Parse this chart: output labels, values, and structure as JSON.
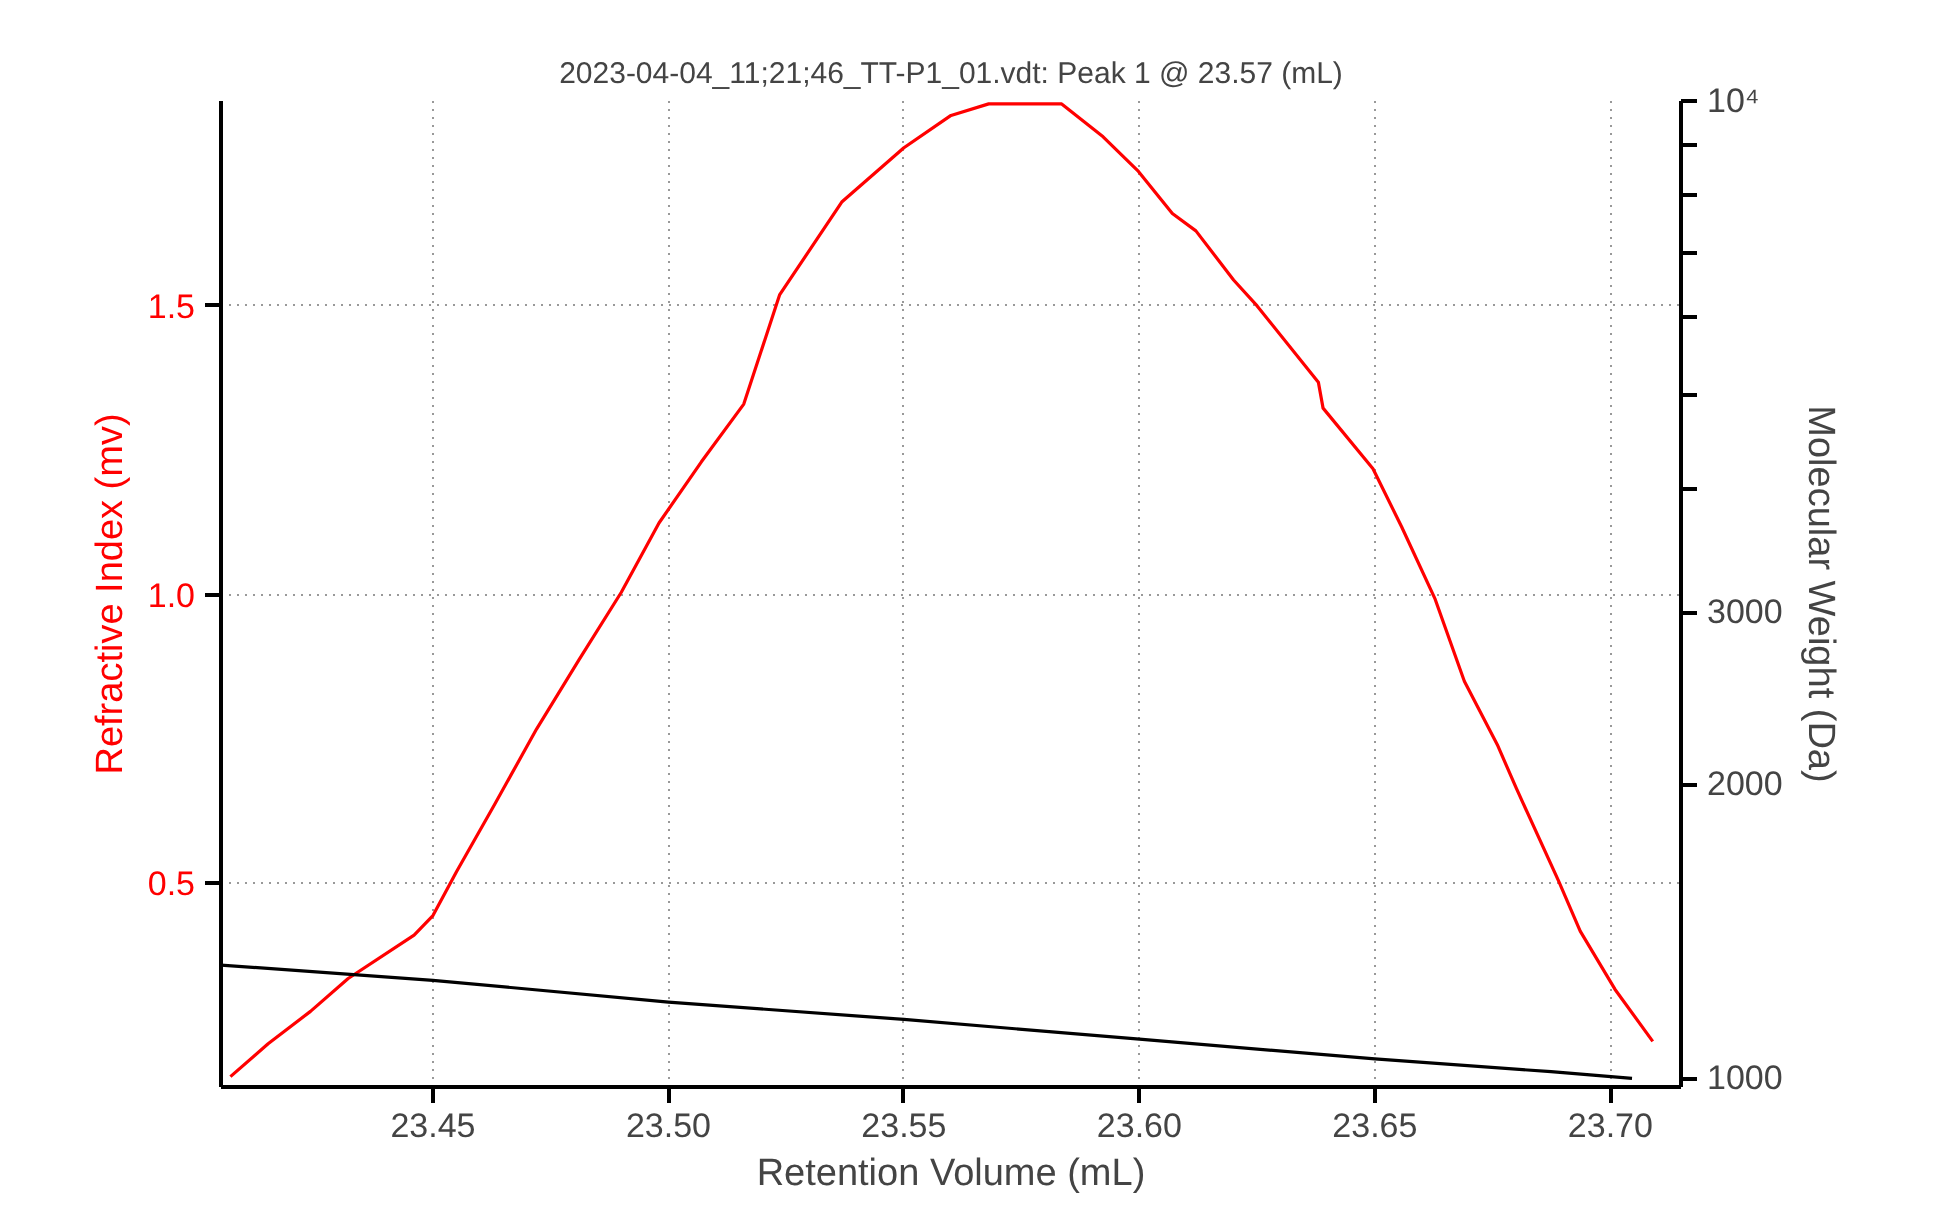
{
  "chart_data": {
    "type": "line",
    "title": "2023-04-04_11;21;46_TT-P1_01.vdt: Peak 1 @ 23.57 (mL)",
    "xlabel": "Retention Volume (mL)",
    "ylabel": "Refractive Index (mv)",
    "y2label": "Molecular Weight (Da)",
    "xlim": [
      23.405,
      23.715
    ],
    "xticks": [
      {
        "value": 23.45,
        "label": "23.45"
      },
      {
        "value": 23.5,
        "label": "23.50"
      },
      {
        "value": 23.55,
        "label": "23.55"
      },
      {
        "value": 23.6,
        "label": "23.60"
      },
      {
        "value": 23.65,
        "label": "23.65"
      },
      {
        "value": 23.7,
        "label": "23.70"
      }
    ],
    "ylim": [
      0.147,
      1.855
    ],
    "yticks": [
      0.5,
      {
        "value": 1.0,
        "label": "1.0"
      },
      1.5
    ],
    "y2lim": [
      980,
      10000
    ],
    "y2ticks": [
      1000,
      2000,
      3000,
      {
        "value": 4000,
        "label": null
      },
      {
        "value": 5000,
        "label": null
      },
      {
        "value": 6000,
        "label": null
      },
      {
        "value": 7000,
        "label": null
      },
      {
        "value": 8000,
        "label": null
      },
      {
        "value": 9000,
        "label": null
      },
      {
        "value": 10000,
        "label": "10⁴"
      }
    ],
    "log": "y2",
    "grid": true,
    "line_style": "solid",
    "series": [
      {
        "color": "#ff0000",
        "x": [
          23.407,
          23.415,
          23.424,
          23.432,
          23.446,
          23.45,
          23.455,
          23.463,
          23.472,
          23.481,
          23.49,
          23.498,
          23.507,
          23.516,
          23.5236,
          23.5368,
          23.55,
          23.56,
          23.568,
          23.5835,
          23.5923,
          23.5998,
          23.607,
          23.612,
          23.62,
          23.625,
          23.638,
          23.639,
          23.6496,
          23.6557,
          23.6628,
          23.669,
          23.676,
          23.68,
          23.689,
          23.6936,
          23.701,
          23.709
        ],
        "values": [
          0.165,
          0.222,
          0.278,
          0.335,
          0.41,
          0.444,
          0.52,
          0.635,
          0.767,
          0.887,
          1.004,
          1.124,
          1.23,
          1.33,
          1.519,
          1.68,
          1.774,
          1.83,
          1.85,
          1.85,
          1.793,
          1.733,
          1.66,
          1.63,
          1.545,
          1.5,
          1.368,
          1.323,
          1.218,
          1.117,
          0.992,
          0.85,
          0.74,
          0.665,
          0.504,
          0.417,
          0.316,
          0.226
        ]
      },
      {
        "color": "#000000",
        "axis": "y2",
        "x": [
          23.405,
          23.45,
          23.5,
          23.55,
          23.6,
          23.65,
          23.6874,
          23.7046
        ],
        "values": [
          1306,
          1260,
          1197,
          1149,
          1097,
          1047,
          1016,
          1000
        ]
      }
    ]
  }
}
